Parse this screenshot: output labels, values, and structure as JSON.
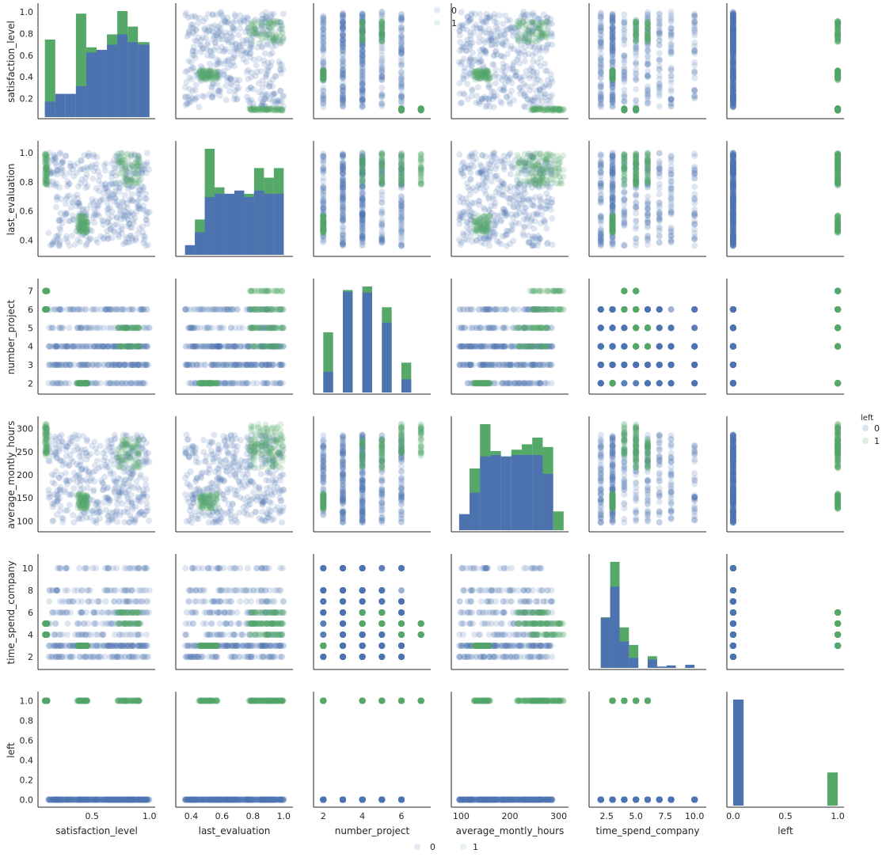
{
  "chart_data": {
    "type": "scatter",
    "variables": [
      "satisfaction_level",
      "last_evaluation",
      "number_project",
      "average_montly_hours",
      "time_spend_company",
      "left"
    ],
    "hue": "left",
    "hue_levels": [
      "0",
      "1"
    ],
    "colors": {
      "0": "#4c72b0",
      "1": "#55a868"
    },
    "ranges": {
      "satisfaction_level": [
        0.03,
        1.05
      ],
      "last_evaluation": [
        0.3,
        1.06
      ],
      "number_project": [
        1.5,
        7.5
      ],
      "average_montly_hours": [
        80,
        320
      ],
      "time_spend_company": [
        1.0,
        11.0
      ],
      "left": [
        -0.06,
        1.06
      ]
    },
    "ticks": {
      "satisfaction_level": {
        "row": [
          0.2,
          0.4,
          0.6,
          0.8,
          1.0
        ],
        "col": [
          0.5,
          1.0
        ]
      },
      "last_evaluation": {
        "row": [
          0.4,
          0.6,
          0.8,
          1.0
        ],
        "col": [
          0.4,
          0.6,
          0.8,
          1.0
        ]
      },
      "number_project": {
        "row": [
          2,
          3,
          4,
          5,
          6,
          7
        ],
        "col": [
          2,
          4,
          6
        ]
      },
      "average_montly_hours": {
        "row": [
          100,
          150,
          200,
          250,
          300
        ],
        "col": [
          100,
          200,
          300
        ]
      },
      "time_spend_company": {
        "row": [
          2,
          4,
          6,
          8,
          10
        ],
        "col": [
          2.5,
          5.0,
          7.5,
          10.0
        ]
      },
      "left": {
        "row": [
          0.0,
          0.2,
          0.4,
          0.6,
          0.8,
          1.0
        ],
        "col": [
          0.0,
          0.5,
          1.0
        ]
      }
    },
    "tick_labels": {
      "satisfaction_level": {
        "row": [
          "0.2",
          "0.4",
          "0.6",
          "0.8",
          "1.0"
        ],
        "col": [
          "0.5",
          "1.0"
        ]
      },
      "last_evaluation": {
        "row": [
          "0.4",
          "0.6",
          "0.8",
          "1.0"
        ],
        "col": [
          "0.4",
          "0.6",
          "0.8",
          "1.0"
        ]
      },
      "number_project": {
        "row": [
          "2",
          "3",
          "4",
          "5",
          "6",
          "7"
        ],
        "col": [
          "2",
          "4",
          "6"
        ]
      },
      "average_montly_hours": {
        "row": [
          "100",
          "150",
          "200",
          "250",
          "300"
        ],
        "col": [
          "100",
          "200",
          "300"
        ]
      },
      "time_spend_company": {
        "row": [
          "2",
          "4",
          "6",
          "8",
          "10"
        ],
        "col": [
          "2.5",
          "5.0",
          "7.5",
          "10.0"
        ]
      },
      "left": {
        "row": [
          "0.0",
          "0.2",
          "0.4",
          "0.6",
          "0.8",
          "1.0"
        ],
        "col": [
          "0.0",
          "0.5",
          "1.0"
        ]
      }
    },
    "histograms": {
      "satisfaction_level": {
        "bins": [
          0.09,
          0.18,
          0.27,
          0.36,
          0.45,
          0.54,
          0.63,
          0.72,
          0.81,
          0.9,
          1.0
        ],
        "counts_0": [
          30,
          45,
          45,
          60,
          125,
          130,
          140,
          160,
          145,
          140
        ],
        "counts_1": [
          120,
          0,
          0,
          140,
          10,
          0,
          20,
          45,
          30,
          5
        ]
      },
      "last_evaluation": {
        "bins": [
          0.36,
          0.424,
          0.488,
          0.552,
          0.616,
          0.68,
          0.744,
          0.808,
          0.872,
          0.936,
          1.0
        ],
        "counts_0": [
          30,
          70,
          180,
          190,
          190,
          200,
          180,
          200,
          190,
          190
        ],
        "counts_1": [
          0,
          40,
          150,
          20,
          0,
          0,
          10,
          70,
          50,
          80
        ]
      },
      "number_project": {
        "bins": [
          2.0,
          2.5,
          3.0,
          3.5,
          4.0,
          4.5,
          5.0,
          5.5,
          6.0,
          6.5,
          7.0
        ],
        "counts_0": [
          820,
          0,
          3980,
          0,
          3950,
          0,
          2760,
          0,
          520,
          0
        ],
        "counts_1": [
          1560,
          0,
          70,
          0,
          240,
          0,
          610,
          0,
          660,
          0
        ]
      },
      "average_montly_hours": {
        "bins": [
          96,
          117.4,
          138.8,
          160.2,
          181.6,
          203,
          224.4,
          245.8,
          267.2,
          288.6,
          310
        ],
        "counts_0": [
          120,
          280,
          550,
          560,
          550,
          560,
          560,
          560,
          420,
          0
        ],
        "counts_1": [
          0,
          180,
          240,
          30,
          0,
          40,
          80,
          130,
          200,
          140
        ]
      },
      "time_spend_company": {
        "bins": [
          2.0,
          2.8,
          3.6,
          4.4,
          5.2,
          6.0,
          6.8,
          7.6,
          8.4,
          9.2,
          10.0
        ],
        "counts_0": [
          3200,
          5200,
          1700,
          640,
          0,
          540,
          90,
          160,
          0,
          200
        ],
        "counts_1": [
          50,
          1600,
          900,
          830,
          0,
          210,
          0,
          0,
          0,
          0
        ]
      },
      "left": {
        "bins": [
          0.0,
          0.1,
          0.2,
          0.3,
          0.4,
          0.5,
          0.6,
          0.7,
          0.8,
          0.9,
          1.0
        ],
        "counts_0": [
          11428,
          0,
          0,
          0,
          0,
          0,
          0,
          0,
          0,
          0
        ],
        "counts_1": [
          0,
          0,
          0,
          0,
          0,
          0,
          0,
          0,
          0,
          3571
        ]
      }
    },
    "clusters_left_1": {
      "satisfaction_level": [
        [
          0.4,
          0.46
        ],
        [
          0.72,
          0.92
        ],
        [
          0.09,
          0.11
        ]
      ],
      "last_evaluation": [
        [
          0.45,
          0.57
        ],
        [
          0.77,
          1.0
        ],
        [
          0.77,
          1.0
        ]
      ],
      "average_montly_hours": [
        [
          126,
          161
        ],
        [
          214,
          278
        ],
        [
          240,
          310
        ]
      ],
      "number_project": [
        [
          2,
          2
        ],
        [
          4,
          5
        ],
        [
          6,
          7
        ]
      ],
      "time_spend_company": [
        [
          3,
          3
        ],
        [
          5,
          6
        ],
        [
          4,
          5
        ]
      ]
    },
    "legend": {
      "title": "left",
      "entries": [
        "0",
        "1"
      ],
      "placement": "right"
    },
    "top_legend_entries": [
      "0",
      "1"
    ],
    "bottom_legend_entries": [
      "0",
      "1"
    ]
  }
}
